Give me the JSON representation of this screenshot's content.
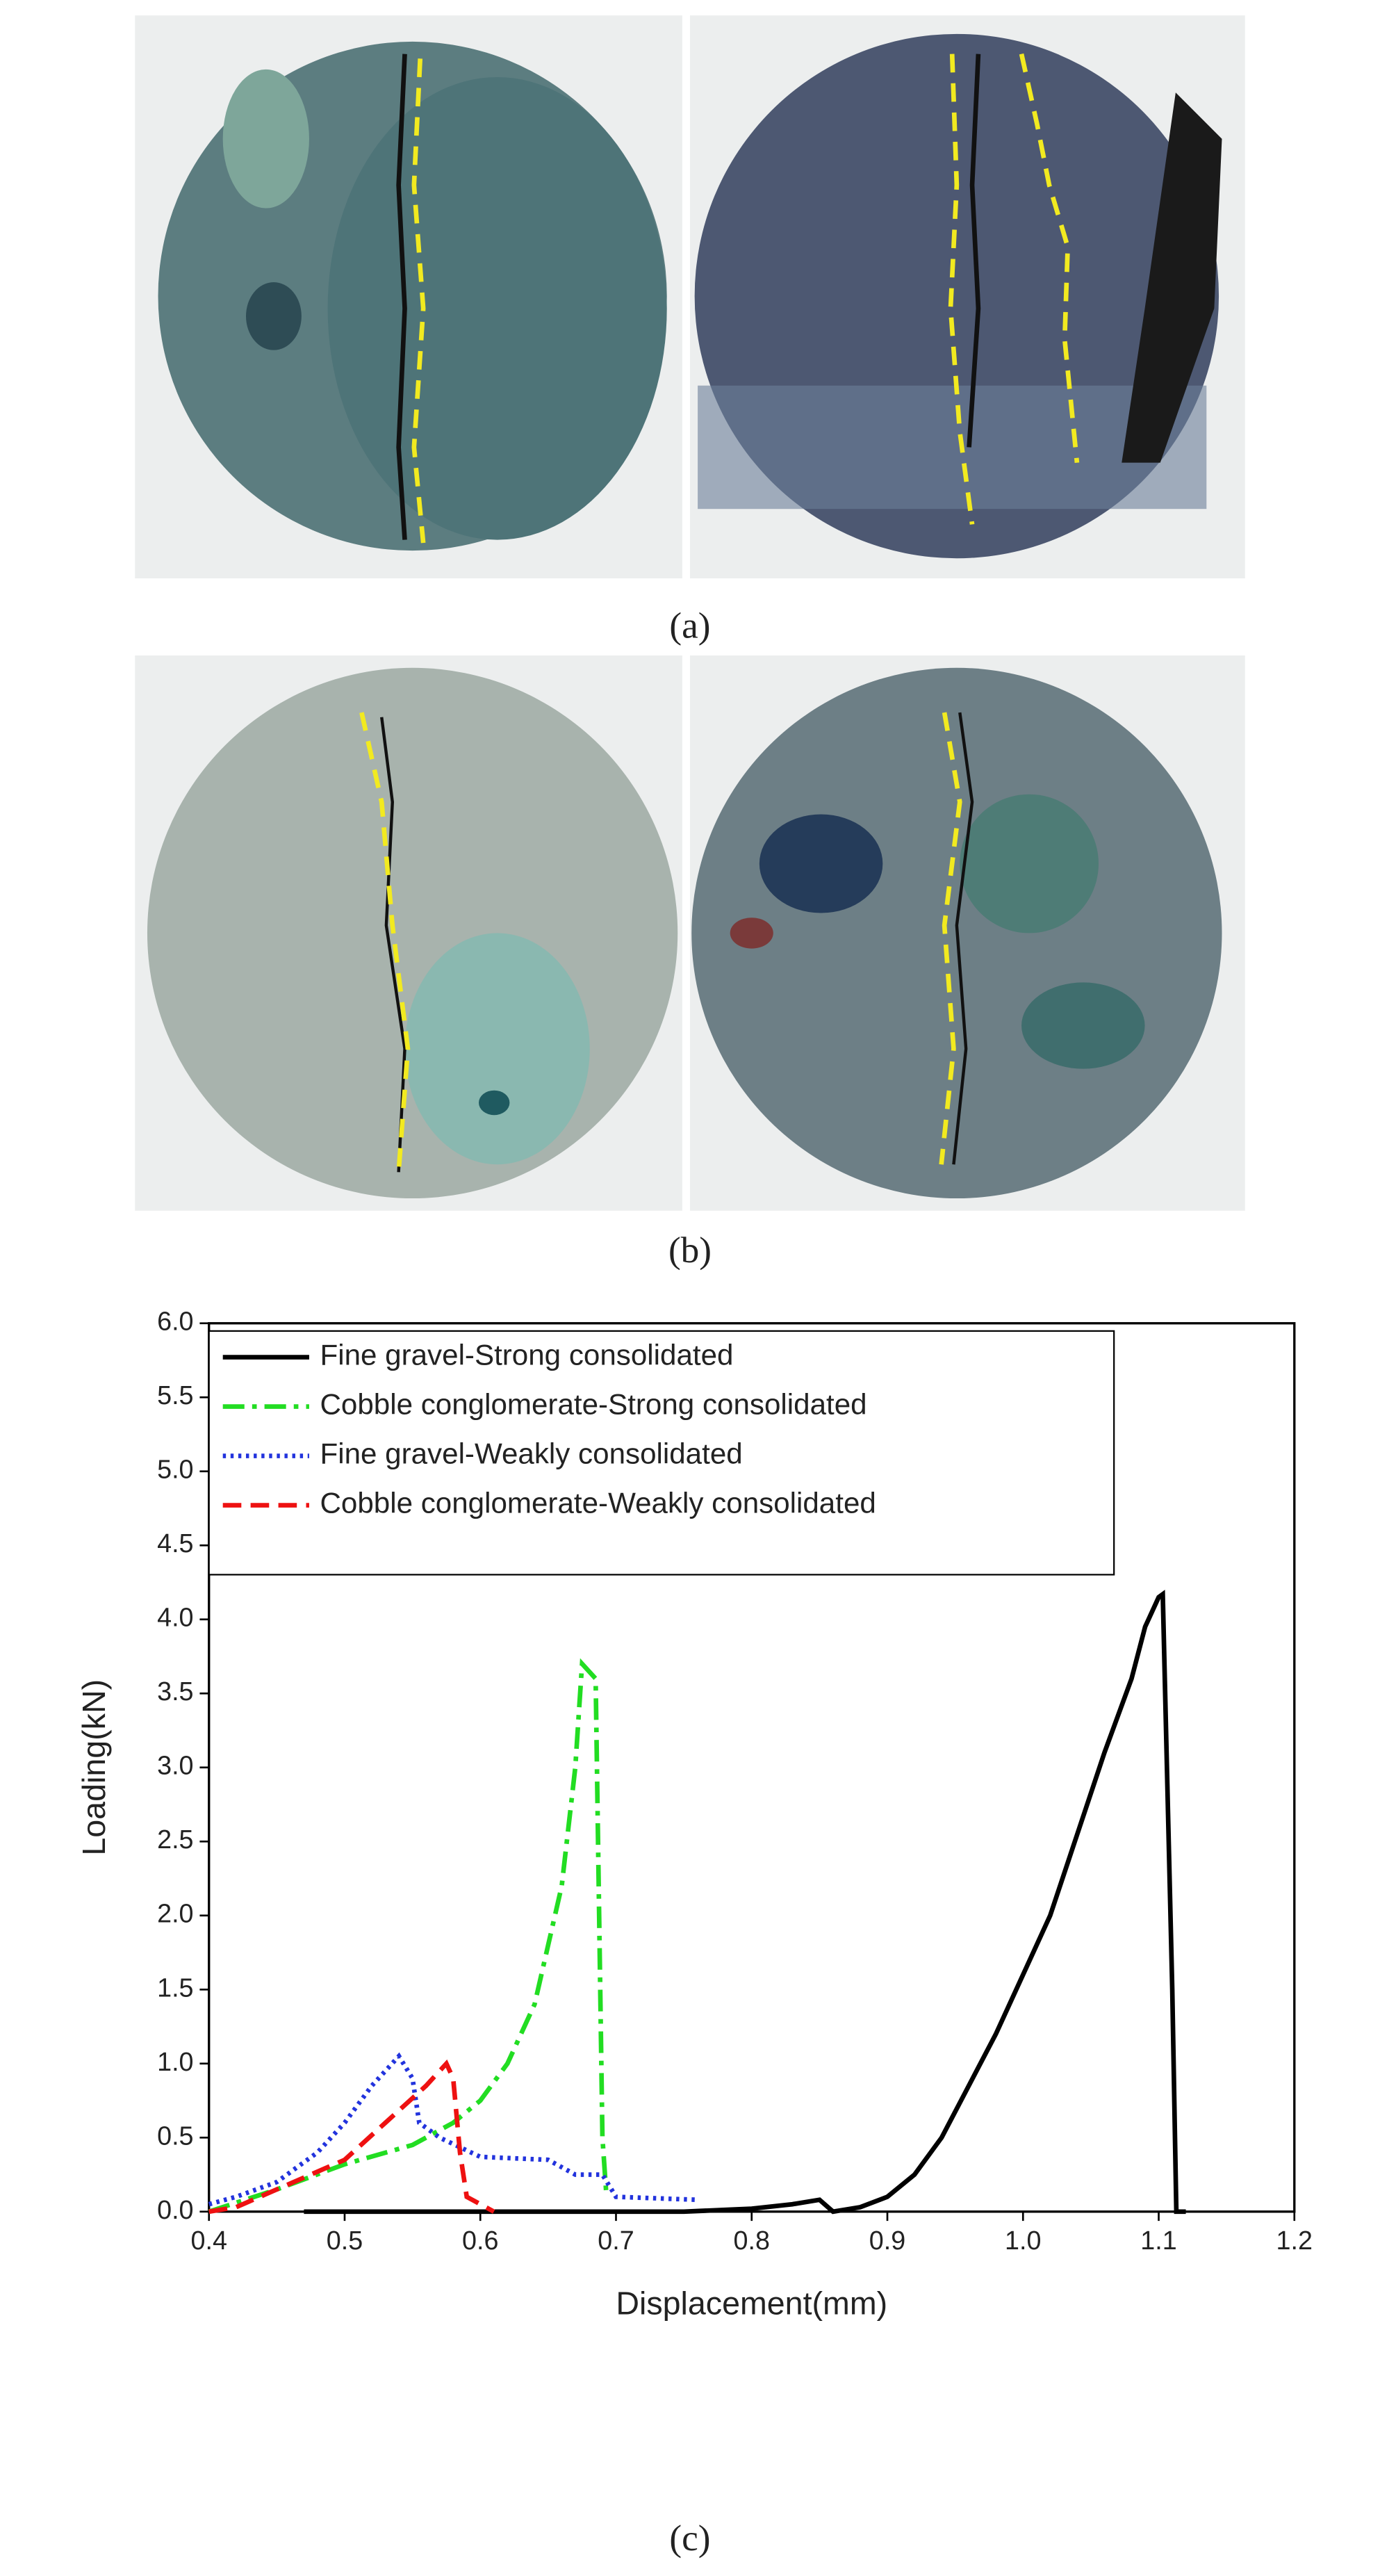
{
  "panels": [
    {
      "label": "(a)"
    },
    {
      "label": "(b)"
    },
    {
      "label": "(c)"
    }
  ],
  "chart_data": {
    "type": "line",
    "xlabel": "Displacement(mm)",
    "ylabel": "Loading(kN)",
    "xlim": [
      0.4,
      1.2
    ],
    "xticks": [
      0.4,
      0.5,
      0.6,
      0.7,
      0.8,
      0.9,
      {
        "value": 1,
        "label": "1.0"
      },
      1.1,
      1.2
    ],
    "ylim": [
      0,
      6
    ],
    "yticks": [
      {
        "value": 0,
        "label": "0.0"
      },
      0.5,
      {
        "value": 1,
        "label": "1.0"
      },
      1.5,
      {
        "value": 2,
        "label": "2.0"
      },
      2.5,
      {
        "value": 3,
        "label": "3.0"
      },
      3.5,
      {
        "value": 4,
        "label": "4.0"
      },
      4.5,
      {
        "value": 5,
        "label": "5.0"
      },
      5.5,
      {
        "value": 6,
        "label": "6.0"
      }
    ],
    "legend": "upper left",
    "series": [
      {
        "name": "Fine gravel-Strong consolidated",
        "color": "#000000",
        "dash": "solid",
        "x": [
          0.47,
          0.55,
          0.65,
          0.75,
          0.8,
          0.83,
          0.85,
          0.86,
          0.88,
          0.9,
          0.92,
          0.94,
          0.96,
          0.98,
          1.0,
          1.02,
          1.04,
          1.06,
          1.08,
          1.09,
          1.1,
          1.103,
          1.11,
          1.113,
          1.12
        ],
        "values": [
          0,
          0,
          0,
          0,
          0.02,
          0.05,
          0.08,
          0,
          0.03,
          0.1,
          0.25,
          0.5,
          0.85,
          1.2,
          1.6,
          2.0,
          2.55,
          3.1,
          3.6,
          3.95,
          4.15,
          4.17,
          1.5,
          0,
          0
        ]
      },
      {
        "name": "Cobble conglomerate-Strong consolidated",
        "color": "#22dd22",
        "dash": "dashdot",
        "x": [
          0.4,
          0.45,
          0.5,
          0.55,
          0.58,
          0.6,
          0.62,
          0.64,
          0.66,
          0.67,
          0.675,
          0.685,
          0.69,
          0.693
        ],
        "values": [
          0,
          0.15,
          0.32,
          0.45,
          0.6,
          0.75,
          1.0,
          1.4,
          2.2,
          3.0,
          3.7,
          3.6,
          0.5,
          0.1
        ]
      },
      {
        "name": "Fine gravel-Weakly consolidated",
        "color": "#2233dd",
        "dash": "dot",
        "x": [
          0.4,
          0.42,
          0.45,
          0.48,
          0.5,
          0.52,
          0.54,
          0.55,
          0.555,
          0.57,
          0.6,
          0.65,
          0.67,
          0.69,
          0.7,
          0.76
        ],
        "values": [
          0.05,
          0.1,
          0.2,
          0.4,
          0.6,
          0.85,
          1.05,
          0.9,
          0.6,
          0.5,
          0.37,
          0.35,
          0.25,
          0.25,
          0.1,
          0.08
        ]
      },
      {
        "name": "Cobble conglomerate-Weakly consolidated",
        "color": "#ee1111",
        "dash": "dash",
        "x": [
          0.4,
          0.42,
          0.45,
          0.5,
          0.53,
          0.56,
          0.575,
          0.58,
          0.585,
          0.59,
          0.6,
          0.61
        ],
        "values": [
          0,
          0.03,
          0.15,
          0.35,
          0.6,
          0.85,
          1.0,
          0.9,
          0.4,
          0.1,
          0.05,
          0
        ]
      }
    ]
  }
}
